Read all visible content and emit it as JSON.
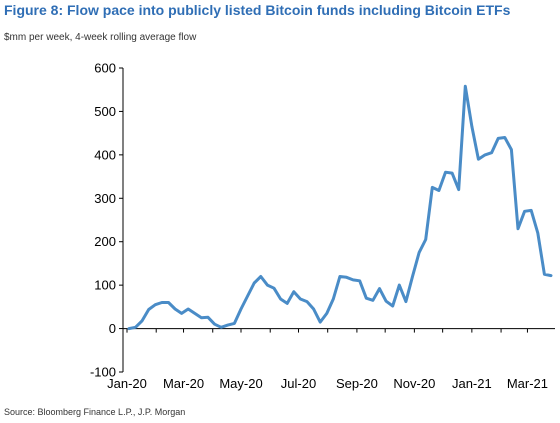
{
  "header": {
    "title": "Figure 8: Flow pace into publicly listed Bitcoin funds including Bitcoin ETFs",
    "subtitle": "$mm per week, 4-week rolling average flow"
  },
  "footer": {
    "source": "Source: Bloomberg Finance L.P., J.P. Morgan"
  },
  "chart_data": {
    "type": "line",
    "title": "Figure 8: Flow pace into publicly listed Bitcoin funds including Bitcoin ETFs",
    "ylabel": "$mm per week, 4-week rolling average flow",
    "xlabel": "",
    "ylim": [
      -100,
      600
    ],
    "y_ticks": [
      -100,
      0,
      100,
      200,
      300,
      400,
      500,
      600
    ],
    "x_tick_labels": [
      "Jan-20",
      "Mar-20",
      "May-20",
      "Jul-20",
      "Sep-20",
      "Nov-20",
      "Jan-21",
      "Mar-21"
    ],
    "grid": false,
    "line_color": "#4a8cc7",
    "series": [
      {
        "x": [
          "2020-01-03",
          "2020-01-10",
          "2020-01-17",
          "2020-01-24",
          "2020-01-31",
          "2020-02-07",
          "2020-02-14",
          "2020-02-21",
          "2020-02-28",
          "2020-03-06",
          "2020-03-13",
          "2020-03-20",
          "2020-03-27",
          "2020-04-03",
          "2020-04-10",
          "2020-04-17",
          "2020-04-24",
          "2020-05-01",
          "2020-05-08",
          "2020-05-15",
          "2020-05-22",
          "2020-05-29",
          "2020-06-05",
          "2020-06-12",
          "2020-06-19",
          "2020-06-26",
          "2020-07-03",
          "2020-07-10",
          "2020-07-17",
          "2020-07-24",
          "2020-07-31",
          "2020-08-07",
          "2020-08-14",
          "2020-08-21",
          "2020-08-28",
          "2020-09-04",
          "2020-09-11",
          "2020-09-18",
          "2020-09-25",
          "2020-10-02",
          "2020-10-09",
          "2020-10-16",
          "2020-10-23",
          "2020-10-30",
          "2020-11-06",
          "2020-11-13",
          "2020-11-20",
          "2020-11-27",
          "2020-12-04",
          "2020-12-11",
          "2020-12-18",
          "2020-12-25",
          "2021-01-01",
          "2021-01-08",
          "2021-01-15",
          "2021-01-22",
          "2021-01-29",
          "2021-02-05",
          "2021-02-12",
          "2021-02-19",
          "2021-02-26",
          "2021-03-05",
          "2021-03-12",
          "2021-03-19",
          "2021-03-26"
        ],
        "values": [
          0,
          3,
          18,
          44,
          55,
          60,
          60,
          45,
          35,
          45,
          35,
          25,
          26,
          10,
          3,
          8,
          12,
          45,
          75,
          105,
          120,
          100,
          93,
          68,
          58,
          85,
          68,
          62,
          45,
          15,
          35,
          68,
          120,
          118,
          112,
          110,
          70,
          65,
          92,
          63,
          52,
          100,
          62,
          120,
          175,
          205,
          325,
          318,
          360,
          358,
          320,
          558,
          465,
          390,
          400,
          405,
          438,
          440,
          412,
          230,
          270,
          272,
          220,
          125,
          122
        ]
      }
    ]
  }
}
